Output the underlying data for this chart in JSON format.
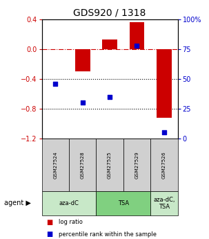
{
  "title": "GDS920 / 1318",
  "samples": [
    "GSM27524",
    "GSM27528",
    "GSM27525",
    "GSM27529",
    "GSM27526"
  ],
  "log_ratio": [
    0.0,
    -0.3,
    0.13,
    0.36,
    -0.92
  ],
  "percentile": [
    46,
    30,
    35,
    78,
    5
  ],
  "bar_color": "#cc0000",
  "dot_color": "#0000cc",
  "ylim_left": [
    -1.2,
    0.4
  ],
  "ylim_right": [
    0,
    100
  ],
  "yticks_left": [
    0.4,
    0.0,
    -0.4,
    -0.8,
    -1.2
  ],
  "yticks_right": [
    100,
    75,
    50,
    25,
    0
  ],
  "group_defs": [
    [
      0,
      1,
      "aza-dC",
      "#c8e8c8"
    ],
    [
      2,
      3,
      "TSA",
      "#80d080"
    ],
    [
      4,
      4,
      "aza-dC,\nTSA",
      "#c8e8c8"
    ]
  ],
  "sample_box_color": "#d0d0d0",
  "legend": [
    {
      "color": "#cc0000",
      "label": "log ratio"
    },
    {
      "color": "#0000cc",
      "label": "percentile rank within the sample"
    }
  ],
  "dashed_line_color": "#cc0000",
  "dotted_line_color": "#000000",
  "bar_width": 0.55
}
